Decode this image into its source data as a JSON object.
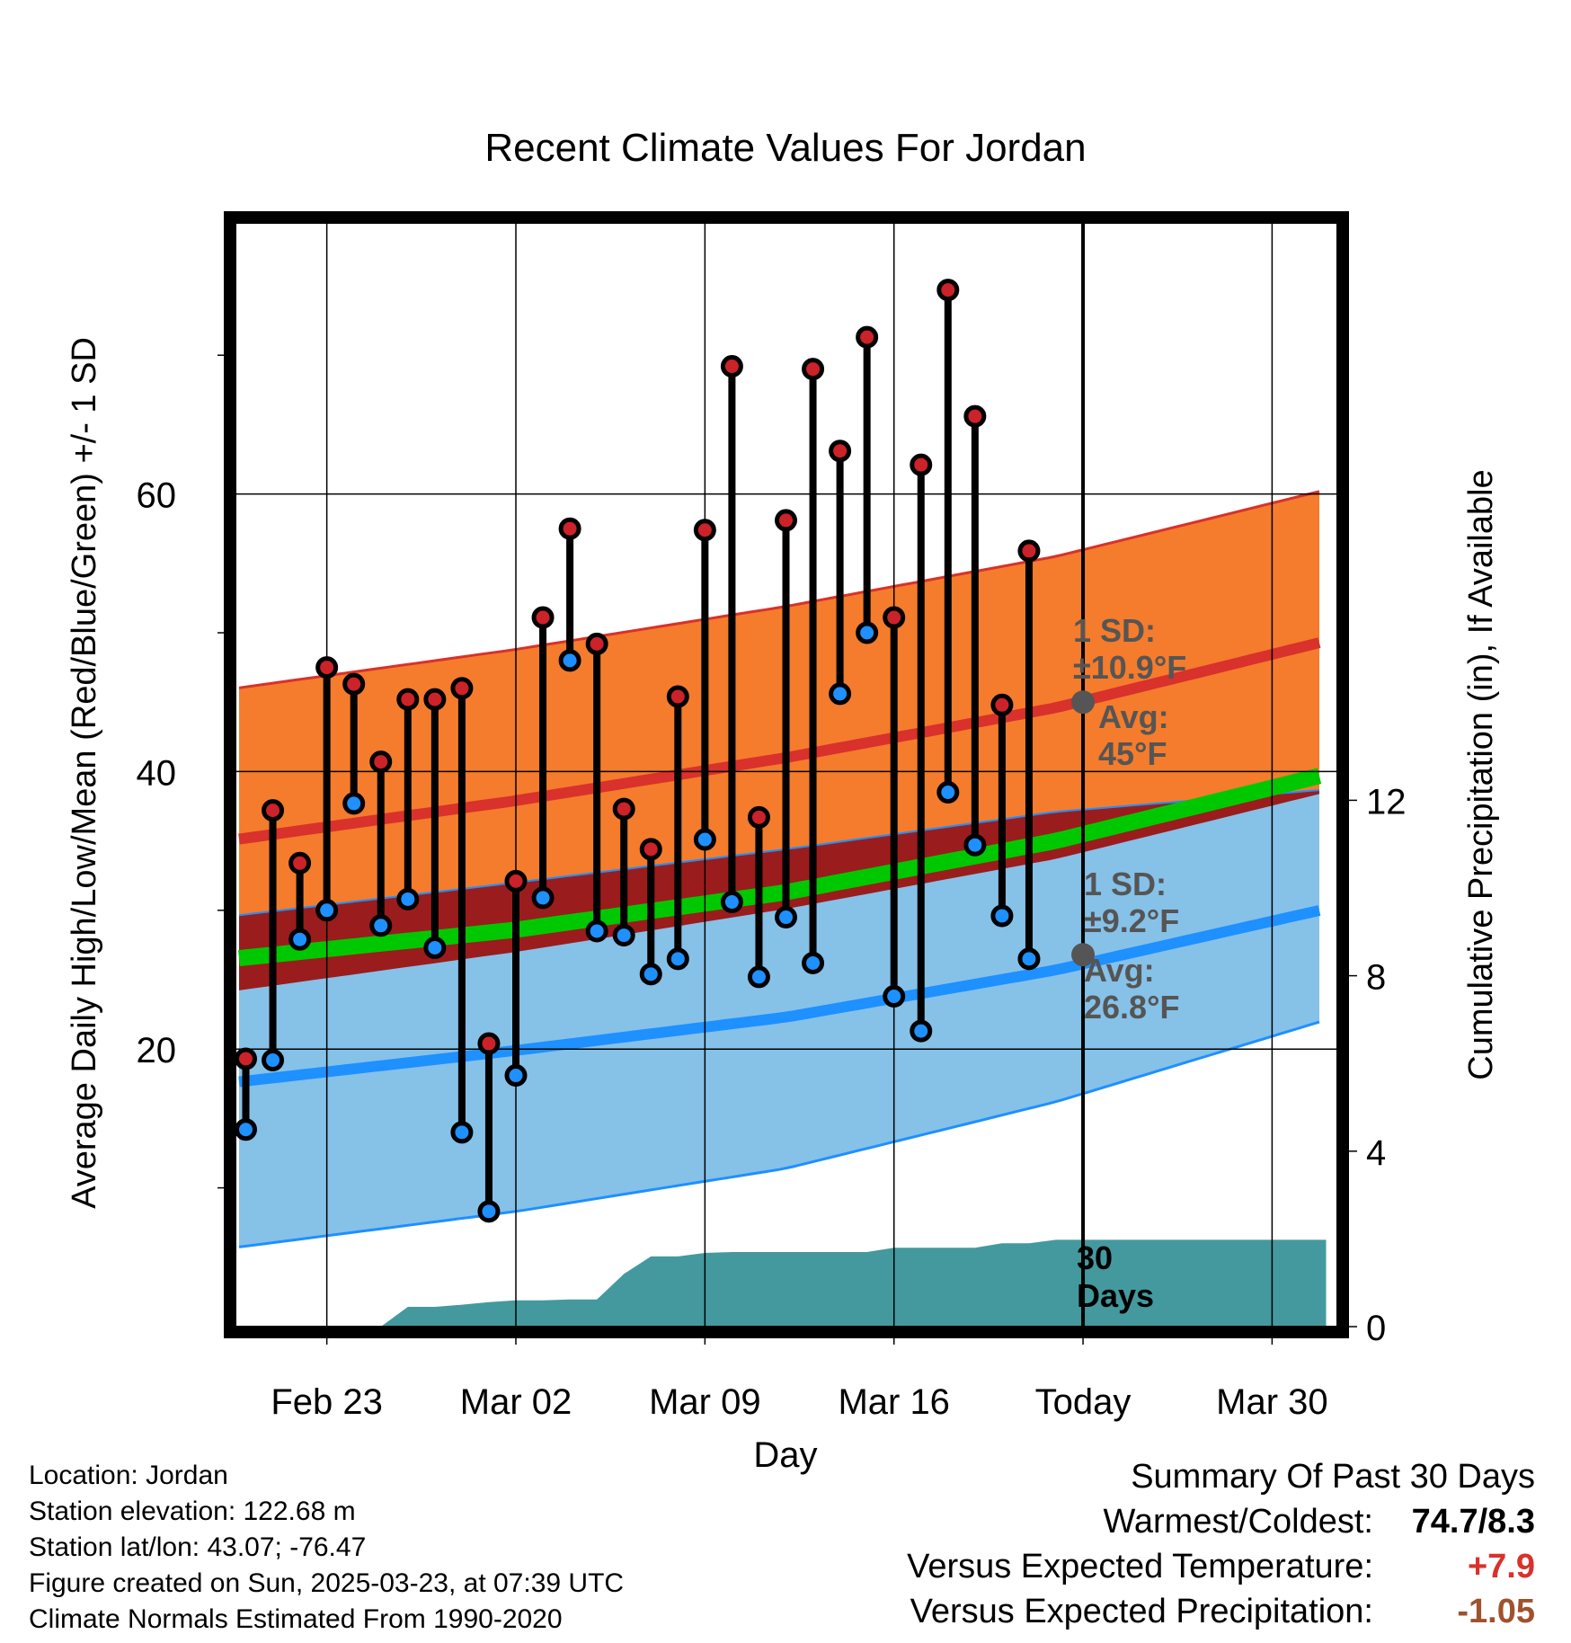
{
  "chart_data": {
    "type": "line",
    "title": "Recent Climate Values For Jordan",
    "xlabel": "Day",
    "ylabel": "Average Daily High/Low/Mean (Red/Blue/Green) +/- 1 SD",
    "y2label": "Cumulative Precipitation (in), If Available",
    "ylim": [
      0,
      80
    ],
    "y_ticks": [
      20,
      40,
      60
    ],
    "y2lim": [
      0,
      20
    ],
    "y2_ticks": [
      0,
      4,
      8,
      12
    ],
    "x_ticks": [
      {
        "day": 3,
        "label": "Feb 23"
      },
      {
        "day": 10,
        "label": "Mar 02"
      },
      {
        "day": 17,
        "label": "Mar 09"
      },
      {
        "day": 24,
        "label": "Mar 16"
      },
      {
        "day": 31,
        "label": "Today"
      },
      {
        "day": 38,
        "label": "Mar 30"
      }
    ],
    "xlim": [
      -0.25,
      40
    ],
    "today_day": 31,
    "dates": [
      "Feb 21",
      "Feb 22",
      "Feb 23",
      "Feb 24",
      "Feb 25",
      "Feb 26",
      "Feb 27",
      "Feb 28",
      "Mar 01",
      "Mar 02",
      "Mar 03",
      "Mar 04",
      "Mar 05",
      "Mar 06",
      "Mar 07",
      "Mar 08",
      "Mar 09",
      "Mar 10",
      "Mar 11",
      "Mar 12",
      "Mar 13",
      "Mar 14",
      "Mar 15",
      "Mar 16",
      "Mar 17",
      "Mar 18",
      "Mar 19",
      "Mar 20",
      "Mar 21",
      "Mar 22"
    ],
    "observed_high": [
      19.3,
      37.2,
      33.4,
      47.5,
      46.3,
      40.7,
      45.2,
      45.2,
      46.0,
      20.4,
      32.1,
      51.1,
      57.5,
      49.2,
      37.3,
      34.4,
      45.4,
      57.4,
      69.2,
      36.7,
      58.1,
      69.0,
      63.1,
      71.3,
      51.1,
      62.1,
      74.7,
      65.6,
      44.8,
      55.9
    ],
    "observed_low": [
      14.2,
      19.2,
      27.9,
      30.0,
      37.7,
      28.9,
      30.8,
      27.3,
      14.0,
      8.3,
      18.1,
      30.9,
      48.0,
      28.5,
      28.2,
      25.4,
      26.5,
      35.1,
      30.6,
      25.2,
      29.5,
      26.2,
      45.6,
      50.0,
      23.8,
      21.3,
      38.5,
      34.7,
      29.6,
      26.5
    ],
    "normal_high": {
      "days": [
        0,
        10,
        20,
        30,
        40
      ],
      "values": [
        35.2,
        37.9,
        41.0,
        44.6,
        49.4
      ]
    },
    "normal_low": {
      "days": [
        0,
        10,
        20,
        30,
        40
      ],
      "values": [
        17.7,
        19.9,
        22.3,
        25.7,
        30.1
      ]
    },
    "normal_mean": {
      "days": [
        0,
        10,
        20,
        30,
        40
      ],
      "values": [
        26.6,
        28.6,
        31.3,
        35.0,
        39.8
      ]
    },
    "normal_high_upper": {
      "days": [
        0,
        10,
        20,
        30,
        40
      ],
      "values": [
        46.1,
        48.8,
        51.9,
        55.5,
        60.3
      ]
    },
    "normal_high_lower": {
      "days": [
        0,
        10,
        20,
        30,
        40
      ],
      "values": [
        24.3,
        27.0,
        30.1,
        33.7,
        38.5
      ]
    },
    "normal_low_upper": {
      "days": [
        0,
        10,
        20,
        30,
        40
      ],
      "values": [
        29.7,
        32.0,
        34.4,
        37.1,
        38.7
      ]
    },
    "normal_low_lower": {
      "days": [
        0,
        10,
        20,
        30,
        40
      ],
      "values": [
        5.8,
        8.3,
        11.4,
        16.2,
        22.1
      ]
    },
    "precip_cumulative": {
      "days": [
        -0.25,
        5,
        6,
        7,
        8,
        9,
        10,
        11,
        12,
        13,
        14,
        15,
        16,
        17,
        18,
        19,
        20,
        21,
        22,
        23,
        24,
        25,
        26,
        27,
        28,
        29,
        30,
        31,
        32,
        33,
        34,
        35,
        36,
        37,
        38,
        39,
        40
      ],
      "values": [
        0,
        0,
        0.45,
        0.45,
        0.5,
        0.56,
        0.6,
        0.6,
        0.62,
        0.62,
        1.2,
        1.6,
        1.6,
        1.68,
        1.7,
        1.7,
        1.7,
        1.7,
        1.7,
        1.7,
        1.8,
        1.8,
        1.8,
        1.8,
        1.9,
        1.9,
        1.98,
        1.98,
        1.98,
        1.98,
        1.98,
        1.98,
        1.98,
        1.98,
        1.98,
        1.98,
        1.98
      ]
    },
    "annotations": {
      "high_sd_line1": "1 SD:",
      "high_sd_line2": "±10.9°F",
      "high_avg_line1": "Avg:",
      "high_avg_line2": "45°F",
      "low_sd_line1": "1 SD:",
      "low_sd_line2": "±9.2°F",
      "low_avg_line1": "Avg:",
      "low_avg_line2": "26.8°F",
      "days_line1": "30",
      "days_line2": "Days"
    },
    "today_markers": {
      "high": 45.0,
      "low": 26.8
    },
    "colors": {
      "high_band": "#f47c2c",
      "high_line": "#d9312b",
      "low_band": "#86c1e8",
      "low_line": "#1e90ff",
      "mean_line": "#00c800",
      "overlap_band": "#9b1c1c",
      "precip": "#44999e",
      "high_point": "#cc2229",
      "low_point": "#1e90ff",
      "annotation": "#555555"
    },
    "grid": true
  },
  "info": {
    "location": "Location: Jordan",
    "elevation": "Station elevation: 122.68 m",
    "latlon": "Station lat/lon: 43.07; -76.47",
    "created": "Figure created on Sun, 2025-03-23, at 07:39 UTC",
    "normals": "Climate Normals Estimated From 1990-2020"
  },
  "summary": {
    "title": "Summary Of Past 30 Days",
    "warm_cold_label": "Warmest/Coldest:",
    "warm_cold_value": "74.7/8.3",
    "temp_label": "Versus Expected Temperature:",
    "temp_value": "+7.9",
    "temp_color": "#d9312b",
    "precip_label": "Versus Expected Precipitation:",
    "precip_value": "-1.05",
    "precip_color": "#a0522d"
  }
}
